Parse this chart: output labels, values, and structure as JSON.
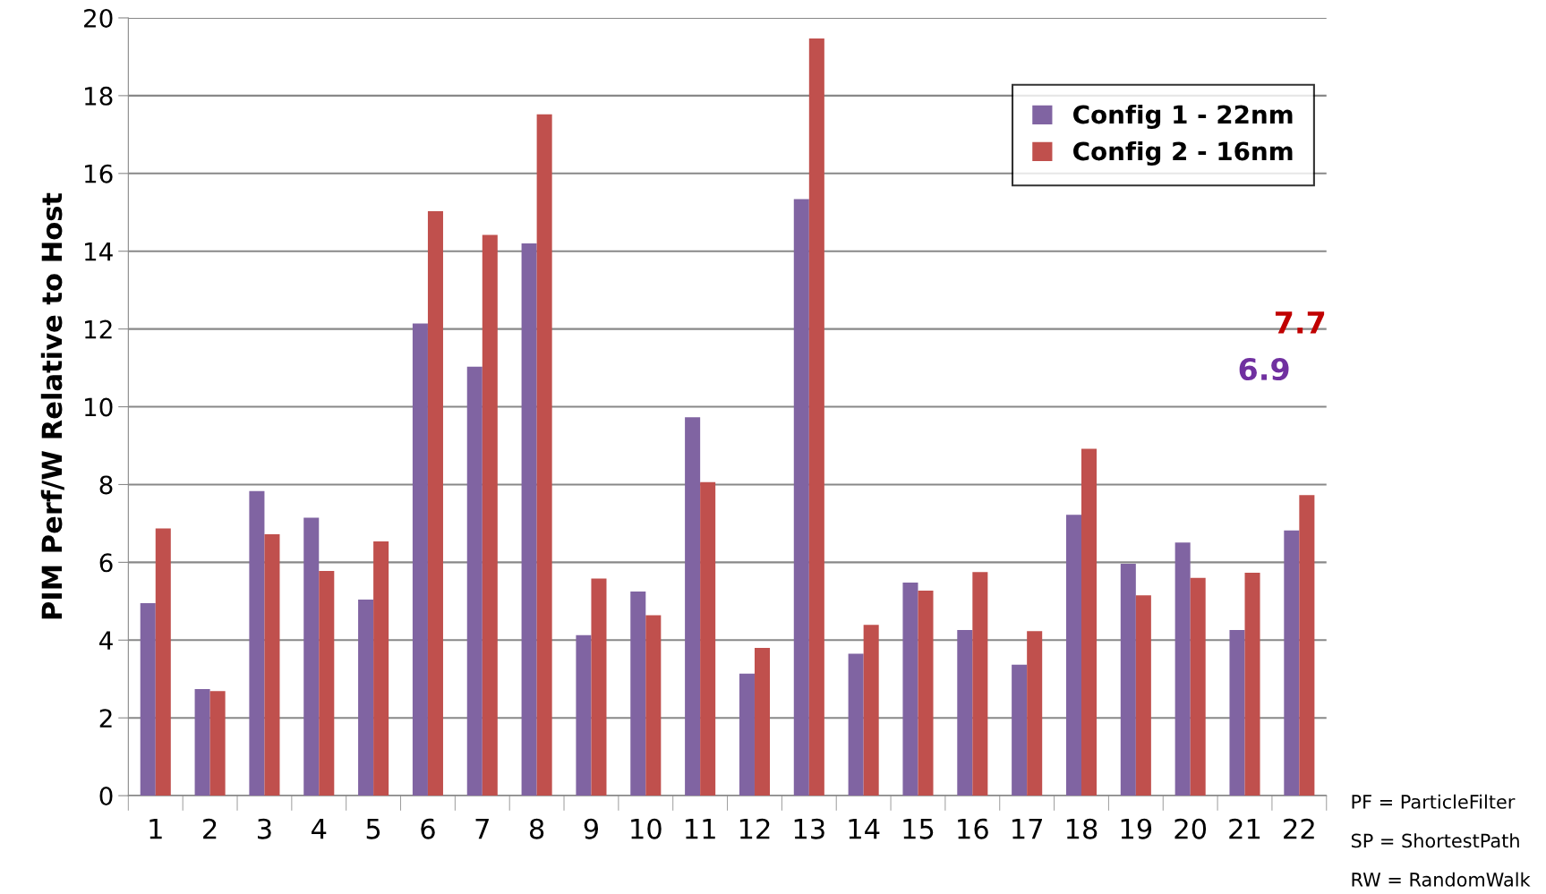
{
  "chart_data": {
    "type": "bar",
    "ylabel": "PIM Perf/W Relative to Host",
    "categories": [
      "1",
      "2",
      "3",
      "4",
      "5",
      "6",
      "7",
      "8",
      "9",
      "10",
      "11",
      "12",
      "13",
      "14",
      "15",
      "16",
      "17",
      "18",
      "19",
      "20",
      "21",
      "22"
    ],
    "series": [
      {
        "name": "Config 1 - 22nm",
        "color": "#8064a2",
        "values": [
          4.95,
          2.74,
          7.83,
          7.15,
          5.04,
          12.14,
          11.03,
          14.2,
          4.13,
          5.25,
          9.73,
          3.14,
          15.34,
          3.65,
          5.48,
          4.26,
          3.37,
          7.22,
          5.96,
          6.51,
          4.26,
          6.82
        ]
      },
      {
        "name": "Config 2 - 16nm",
        "color": "#c0504d",
        "values": [
          6.87,
          2.69,
          6.72,
          5.78,
          6.54,
          15.03,
          14.42,
          17.52,
          5.58,
          4.64,
          8.06,
          3.8,
          19.47,
          4.39,
          5.27,
          5.75,
          4.23,
          8.92,
          5.15,
          5.6,
          5.73,
          7.73
        ]
      }
    ],
    "ylim": [
      0,
      20
    ],
    "yticks": [
      0,
      2,
      4,
      6,
      8,
      10,
      12,
      14,
      16,
      18,
      20
    ],
    "grid": "y",
    "legend": "top right",
    "annotations": [
      "7.7",
      "6.9",
      "PF = ParticleFilter",
      "SP = ShortestPath",
      "RW = RandomWalk"
    ]
  }
}
